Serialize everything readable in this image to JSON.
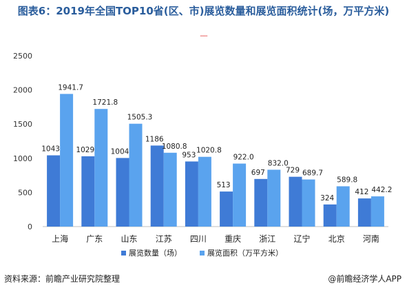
{
  "title": "图表6：2019年全国TOP10省(区、市)展览数量和展览面积统计(场，万平方米)",
  "dash_mark": "----",
  "source": "资料来源：前瞻产业研究院整理",
  "credit": "@前瞻经济学人APP",
  "chart_data": {
    "type": "bar",
    "categories": [
      "上海",
      "广东",
      "山东",
      "江苏",
      "四川",
      "重庆",
      "浙江",
      "辽宁",
      "北京",
      "河南"
    ],
    "series": [
      {
        "name": "展览数量（场）",
        "color": "#3f7bd6",
        "values": [
          1043,
          1029,
          1004,
          1186,
          953,
          513,
          697,
          729,
          324,
          412
        ],
        "labels": [
          "1043",
          "1029",
          "1004",
          "1186",
          "953",
          "513",
          "697",
          "729",
          "324",
          "412"
        ]
      },
      {
        "name": "展览面积（万平方米）",
        "color": "#5aa3ee",
        "values": [
          1941.7,
          1721.8,
          1505.3,
          1080.8,
          1020.8,
          922.0,
          832.0,
          689.7,
          589.8,
          442.2
        ],
        "labels": [
          "1941.7",
          "1721.8",
          "1505.3",
          "1080.8",
          "1020.8",
          "922.0",
          "832.0",
          "689.7",
          "589.8",
          "442.2"
        ]
      }
    ],
    "ylim": [
      0,
      2500
    ],
    "yticks": [
      "0",
      "500",
      "1000",
      "1500",
      "2000",
      "2500"
    ],
    "ytick_values": [
      0,
      500,
      1000,
      1500,
      2000,
      2500
    ],
    "grid": false,
    "legend": "bottom"
  }
}
